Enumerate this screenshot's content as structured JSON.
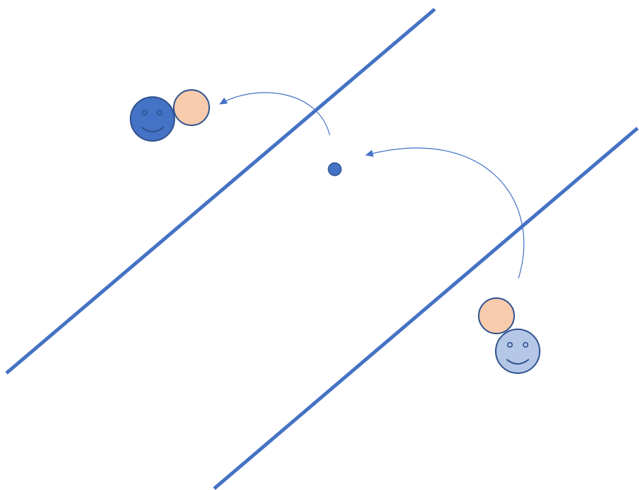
{
  "diagram": {
    "description_free": true,
    "colors": {
      "boundary_line": "#4472c4",
      "arc_arrow": "#4472c4",
      "pivot_dot": "#4472c4",
      "dark_face_fill": "#4472c4",
      "light_face_fill": "#b4c7e7",
      "face_outline": "#2f528f",
      "companion_fill": "#f8cbad",
      "companion_outline": "#2f528f",
      "background": "#ffffff"
    },
    "elements": {
      "lines": [
        "boundary-line-upper",
        "boundary-line-lower"
      ],
      "figures": [
        {
          "name": "figure-after",
          "face_style": "dark"
        },
        {
          "name": "figure-before",
          "face_style": "light"
        }
      ],
      "arrows": [
        "arc-arrow-small",
        "arc-arrow-large"
      ],
      "markers": [
        "pivot-dot"
      ]
    }
  }
}
